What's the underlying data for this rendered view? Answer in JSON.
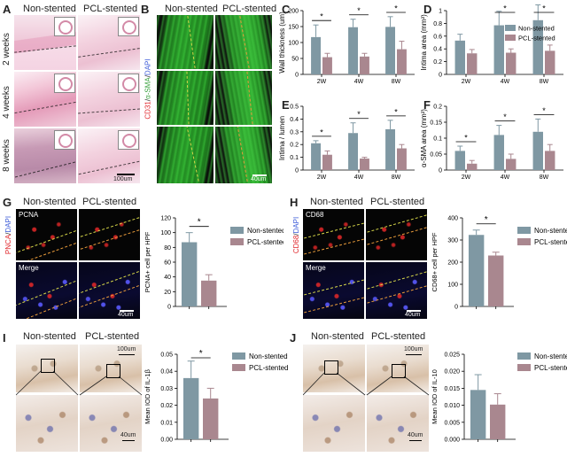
{
  "colors": {
    "non_stented": "#7f98a3",
    "pcl_stented": "#a9878f"
  },
  "panels": {
    "A": {
      "label": "A",
      "col1": "Non-stented",
      "col2": "PCL-stented",
      "rows": [
        "2 weeks",
        "4 weeks",
        "8 weeks"
      ],
      "scale": "100um"
    },
    "B": {
      "label": "B",
      "col1": "Non-stented",
      "col2": "PCL-stented",
      "stain_cd31": "CD31",
      "stain_sep1": "/",
      "stain_asma": "α-SMA",
      "stain_sep2": "/",
      "stain_dapi": "DAPI",
      "scale": "40um"
    },
    "G": {
      "label": "G",
      "col1": "Non-stented",
      "col2": "PCL-stented",
      "top_label": "PCNA",
      "side_pnca": "PNCA",
      "side_sep": "/",
      "side_dapi": "DAPI",
      "merge": "Merge",
      "scale": "40um"
    },
    "H": {
      "label": "H",
      "col1": "Non-stented",
      "col2": "PCL-stented",
      "top_label": "CD68",
      "side_cd68": "CD68",
      "side_sep": "/",
      "side_dapi": "DAPI",
      "merge": "Merge",
      "scale": "40um"
    },
    "I": {
      "label": "I",
      "col1": "Non-stented",
      "col2": "PCL-stented",
      "scale1": "100um",
      "scale2": "40um"
    },
    "J": {
      "label": "J",
      "col1": "Non-stented",
      "col2": "PCL-stented",
      "scale1": "100um",
      "scale2": "40um"
    }
  },
  "chart_data": [
    {
      "id": "C",
      "type": "bar",
      "categories": [
        "2W",
        "4W",
        "8W"
      ],
      "ylabel": "Wall thickness (um)",
      "ylim": [
        0,
        200
      ],
      "yticks": [
        0,
        50,
        100,
        150,
        200
      ],
      "series": [
        {
          "name": "Non-stented",
          "values": [
            117,
            148,
            149
          ],
          "errors": [
            38,
            25,
            32
          ]
        },
        {
          "name": "PCL-stented",
          "values": [
            54,
            56,
            79
          ],
          "errors": [
            12,
            10,
            25
          ]
        }
      ],
      "significance": [
        "*",
        "*",
        "*"
      ],
      "legend": "top-right"
    },
    {
      "id": "D",
      "type": "bar",
      "categories": [
        "2W",
        "4W",
        "8W"
      ],
      "ylabel": "Intima area (mm²)",
      "ylim": [
        0,
        1.0
      ],
      "yticks": [
        0,
        0.2,
        0.4,
        0.6,
        0.8,
        1.0
      ],
      "series": [
        {
          "name": "Non-stented",
          "values": [
            0.53,
            0.77,
            0.85
          ],
          "errors": [
            0.1,
            0.22,
            0.24
          ]
        },
        {
          "name": "PCL-stented",
          "values": [
            0.33,
            0.34,
            0.37
          ],
          "errors": [
            0.06,
            0.06,
            0.09
          ]
        }
      ],
      "significance": [
        "",
        "*",
        "*"
      ],
      "legend": "top-right"
    },
    {
      "id": "E",
      "type": "bar",
      "categories": [
        "2W",
        "4W",
        "8W"
      ],
      "ylabel": "Intima / lumen",
      "ylim": [
        0,
        0.5
      ],
      "yticks": [
        0,
        0.1,
        0.2,
        0.3,
        0.4,
        0.5
      ],
      "series": [
        {
          "name": "Non-stented",
          "values": [
            0.21,
            0.29,
            0.32
          ],
          "errors": [
            0.02,
            0.08,
            0.07
          ]
        },
        {
          "name": "PCL-stented",
          "values": [
            0.12,
            0.09,
            0.17
          ],
          "errors": [
            0.03,
            0.01,
            0.03
          ]
        }
      ],
      "significance": [
        "*",
        "*",
        "*"
      ]
    },
    {
      "id": "F",
      "type": "bar",
      "categories": [
        "2W",
        "4W",
        "8W"
      ],
      "ylabel": "α-SMA area (mm²)",
      "ylim": [
        0,
        0.2
      ],
      "yticks": [
        0,
        0.05,
        0.1,
        0.15,
        0.2
      ],
      "series": [
        {
          "name": "Non-stented",
          "values": [
            0.06,
            0.11,
            0.12
          ],
          "errors": [
            0.015,
            0.03,
            0.04
          ]
        },
        {
          "name": "PCL-stented",
          "values": [
            0.02,
            0.035,
            0.06
          ],
          "errors": [
            0.01,
            0.015,
            0.02
          ]
        }
      ],
      "significance": [
        "*",
        "*",
        "*"
      ]
    },
    {
      "id": "G",
      "type": "bar",
      "categories": [
        "Non-stented",
        "PCL-stented"
      ],
      "ylabel": "PCNA+ cell per HPF",
      "ylim": [
        0,
        120
      ],
      "yticks": [
        0,
        20,
        40,
        60,
        80,
        100,
        120
      ],
      "values": [
        87,
        35
      ],
      "errors": [
        13,
        8
      ],
      "significance": [
        "*"
      ],
      "legend": "right"
    },
    {
      "id": "H",
      "type": "bar",
      "categories": [
        "Non-stented",
        "PCL-stented"
      ],
      "ylabel": "CD68+ cell per HPF",
      "ylim": [
        0,
        400
      ],
      "yticks": [
        0,
        100,
        200,
        300,
        400
      ],
      "values": [
        323,
        230
      ],
      "errors": [
        22,
        15
      ],
      "significance": [
        "*"
      ],
      "legend": "right"
    },
    {
      "id": "I",
      "type": "bar",
      "categories": [
        "Non-stented",
        "PCL-stented"
      ],
      "ylabel": "Mean IOD of IL-1β",
      "ylim": [
        0,
        0.05
      ],
      "yticks": [
        0.0,
        0.01,
        0.02,
        0.03,
        0.04,
        0.05
      ],
      "tick_decimals": 2,
      "values": [
        0.036,
        0.024
      ],
      "errors": [
        0.01,
        0.006
      ],
      "significance": [
        "*"
      ],
      "legend": "right"
    },
    {
      "id": "J",
      "type": "bar",
      "categories": [
        "Non-stented",
        "PCL-stented"
      ],
      "ylabel": "Mean IOD of IL-10",
      "ylim": [
        0,
        0.025
      ],
      "yticks": [
        0.0,
        0.005,
        0.01,
        0.015,
        0.02,
        0.025
      ],
      "tick_decimals": 3,
      "values": [
        0.0145,
        0.0102
      ],
      "errors": [
        0.0045,
        0.0032
      ],
      "significance": [],
      "legend": "right"
    }
  ]
}
